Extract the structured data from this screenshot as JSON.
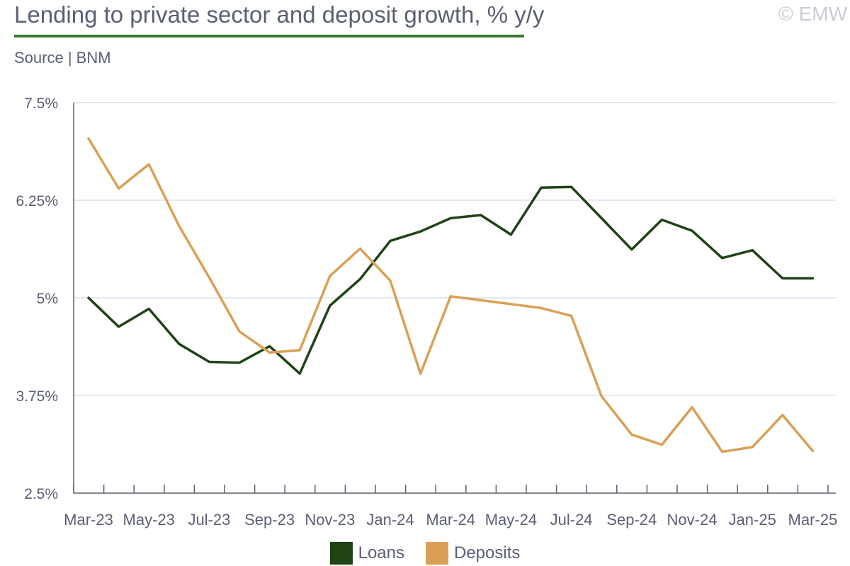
{
  "header": {
    "title": "Lending to private sector and deposit growth, % y/y",
    "source": "Source | BNM",
    "watermark": "© EMW"
  },
  "colors": {
    "loans": "#1f4315",
    "deposits": "#d9a055",
    "grid": "#d8e2ee",
    "axis": "#5a5f73",
    "title_rule": "#3a7a35"
  },
  "chart_data": {
    "type": "line",
    "x": [
      "Mar-23",
      "Apr-23",
      "May-23",
      "Jun-23",
      "Jul-23",
      "Aug-23",
      "Sep-23",
      "Oct-23",
      "Nov-23",
      "Dec-23",
      "Jan-24",
      "Feb-24",
      "Mar-24",
      "Apr-24",
      "May-24",
      "Jun-24",
      "Jul-24",
      "Aug-24",
      "Sep-24",
      "Oct-24",
      "Nov-24",
      "Dec-24",
      "Jan-25",
      "Feb-25",
      "Mar-25"
    ],
    "x_tick_labels": [
      "Mar-23",
      "May-23",
      "Jul-23",
      "Sep-23",
      "Nov-23",
      "Jan-24",
      "Mar-24",
      "May-24",
      "Jul-24",
      "Sep-24",
      "Nov-24",
      "Jan-25",
      "Mar-25"
    ],
    "series": [
      {
        "name": "Loans",
        "values": [
          5.0,
          4.63,
          4.86,
          4.41,
          4.18,
          4.17,
          4.38,
          4.03,
          4.9,
          5.24,
          5.73,
          5.85,
          6.02,
          6.06,
          5.81,
          6.41,
          6.42,
          6.02,
          5.62,
          6.0,
          5.86,
          5.51,
          5.61,
          5.25,
          5.25
        ]
      },
      {
        "name": "Deposits",
        "values": [
          7.04,
          6.4,
          6.71,
          5.92,
          5.26,
          4.57,
          4.3,
          4.33,
          5.28,
          5.63,
          5.22,
          4.03,
          5.02,
          4.97,
          4.92,
          4.87,
          4.77,
          3.74,
          3.25,
          3.12,
          3.6,
          3.03,
          3.09,
          3.5,
          3.04
        ]
      }
    ],
    "y_ticks": [
      "2.5%",
      "3.75%",
      "5%",
      "6.25%",
      "7.5%"
    ],
    "y_tick_values": [
      2.5,
      3.75,
      5.0,
      6.25,
      7.5
    ],
    "ylim": [
      2.5,
      7.5
    ],
    "grid": true,
    "legend_position": "bottom"
  }
}
